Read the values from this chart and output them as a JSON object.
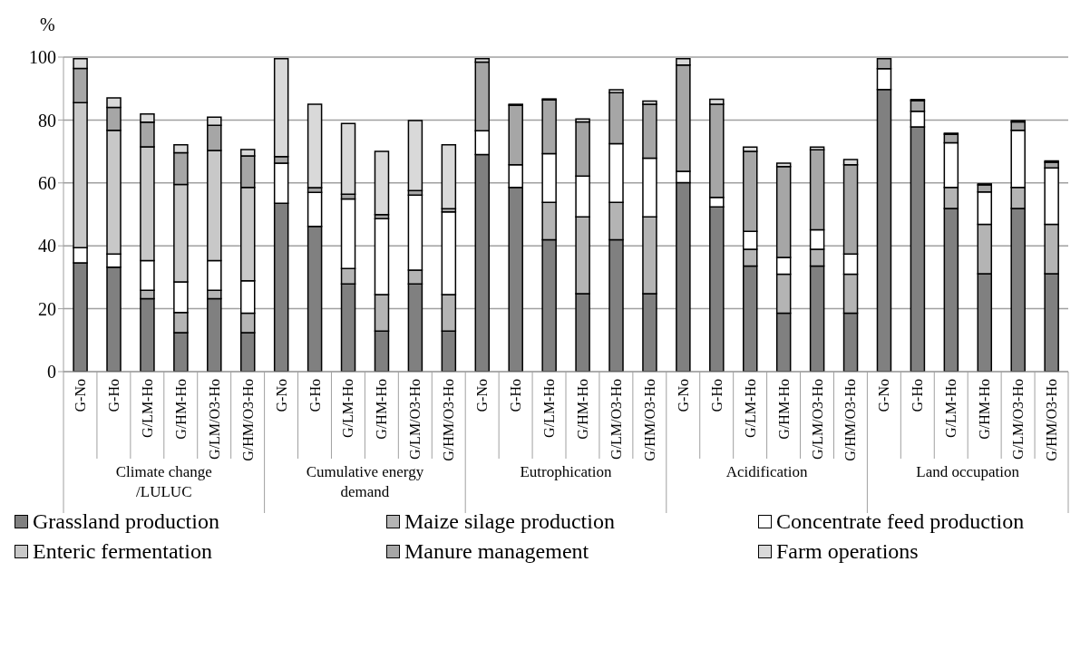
{
  "chart_data": {
    "type": "bar",
    "stacked": true,
    "ylabel": "%",
    "categories": [
      "G-No",
      "G-Ho",
      "G/LM-Ho",
      "G/HM-Ho",
      "G/LM/O3-Ho",
      "G/HM/O3-Ho",
      "G-No",
      "G-Ho",
      "G/LM-Ho",
      "G/HM-Ho",
      "G/LM/O3-Ho",
      "G/HM/O3-Ho",
      "G-No",
      "G-Ho",
      "G/LM-Ho",
      "G/HM-Ho",
      "G/LM/O3-Ho",
      "G/HM/O3-Ho",
      "G-No",
      "G-Ho",
      "G/LM-Ho",
      "G/HM-Ho",
      "G/LM/O3-Ho",
      "G/HM/O3-Ho",
      "G-No",
      "G-Ho",
      "G/LM-Ho",
      "G/HM-Ho",
      "G/LM/O3-Ho",
      "G/HM/O3-Ho"
    ],
    "annotations": [
      "Climate change /LULUC",
      "Cumulative energy demand",
      "Eutrophication",
      "Acidification",
      "Land occupation"
    ],
    "series": [
      {
        "name": "Grassland production",
        "color": "#808080",
        "values": [
          34.6,
          33.2,
          23.2,
          12.4,
          23.2,
          12.4,
          53.5,
          46.2,
          27.9,
          12.9,
          27.9,
          12.9,
          69.0,
          58.6,
          41.9,
          24.8,
          41.9,
          24.8,
          60.1,
          52.4,
          33.6,
          18.6,
          33.6,
          18.6,
          89.7,
          77.8,
          51.9,
          31.1,
          51.9,
          31.1
        ]
      },
      {
        "name": "Maize silage production",
        "color": "#b4b4b4",
        "values": [
          0,
          0,
          2.7,
          6.4,
          2.7,
          6.2,
          0,
          0,
          4.9,
          11.6,
          4.4,
          11.6,
          0,
          0,
          11.9,
          24.4,
          11.9,
          24.4,
          0,
          0,
          5.3,
          12.4,
          5.3,
          12.4,
          0,
          0,
          6.7,
          15.7,
          6.7,
          15.7
        ]
      },
      {
        "name": "Concentrate feed production",
        "color": "#ffffff",
        "values": [
          4.8,
          4.2,
          9.4,
          9.7,
          9.4,
          10.3,
          12.8,
          10.8,
          22.1,
          24.1,
          23.8,
          26.3,
          7.6,
          7.2,
          15.5,
          13.0,
          18.7,
          18.7,
          3.6,
          3.0,
          5.7,
          5.3,
          6.2,
          6.4,
          6.6,
          5.0,
          14.2,
          10.3,
          18.1,
          18.0
        ]
      },
      {
        "name": "Enteric fermentation",
        "color": "#c8c8c8",
        "values": [
          46.1,
          39.3,
          36.2,
          31.0,
          35.0,
          29.7,
          0,
          0,
          0,
          0,
          0,
          0,
          0,
          0,
          0,
          0,
          0,
          0,
          0,
          0,
          0,
          0,
          0,
          0,
          0,
          0,
          0,
          0,
          0,
          0
        ]
      },
      {
        "name": "Manure management",
        "color": "#a6a6a6",
        "values": [
          10.9,
          7.3,
          7.8,
          10.1,
          8.0,
          10.0,
          2.1,
          1.5,
          1.5,
          1.3,
          1.5,
          1.0,
          21.8,
          18.9,
          17.1,
          17.2,
          16.2,
          17.1,
          33.8,
          29.6,
          25.4,
          28.9,
          25.4,
          28.4,
          3.2,
          3.4,
          2.7,
          2.3,
          2.7,
          1.8
        ]
      },
      {
        "name": "Farm operations",
        "color": "#d9d9d9",
        "values": [
          3.1,
          3.0,
          2.6,
          2.5,
          2.6,
          2.0,
          31.1,
          26.5,
          22.5,
          20.1,
          22.2,
          20.3,
          1.1,
          0.3,
          0.3,
          0.9,
          0.9,
          1.0,
          2.0,
          1.6,
          1.4,
          1.1,
          0.9,
          1.6,
          0,
          0.3,
          0.3,
          0.3,
          0.4,
          0.4
        ]
      }
    ],
    "ylim": [
      0,
      100
    ],
    "yticks": [
      0,
      20,
      40,
      60,
      80,
      100
    ],
    "grid": "y",
    "legend": "bottom"
  }
}
